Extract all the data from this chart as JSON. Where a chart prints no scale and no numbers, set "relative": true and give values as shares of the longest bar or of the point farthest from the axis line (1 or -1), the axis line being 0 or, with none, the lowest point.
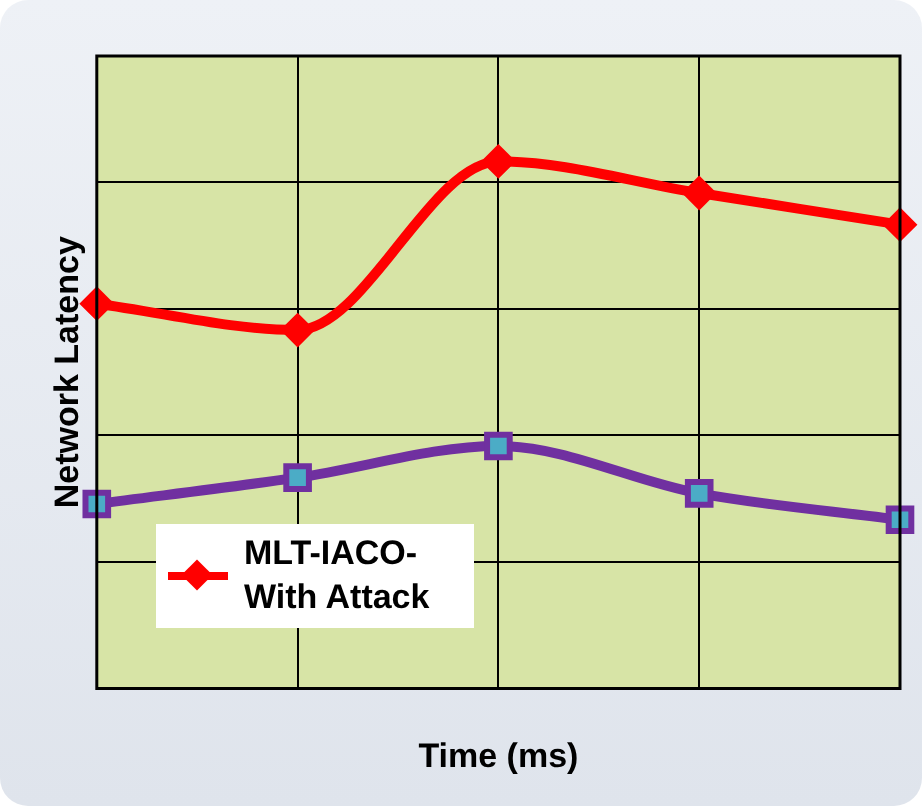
{
  "chart_data": {
    "type": "line",
    "relative": true,
    "xlabel": "Time (ms)",
    "ylabel": "Network Latency",
    "categories": [
      null,
      null,
      null,
      null,
      null
    ],
    "grid": true,
    "legend": "bottom left",
    "series": [
      {
        "name": "MLT-IACO-With Attack",
        "color": "#ff0000",
        "marker": "diamond",
        "values": [
          0.73,
          0.68,
          1,
          0.94,
          0.88
        ]
      },
      {
        "color": "#7030a0",
        "marker": "square",
        "values": [
          0.35,
          0.4,
          0.46,
          0.37,
          0.32
        ]
      }
    ]
  }
}
